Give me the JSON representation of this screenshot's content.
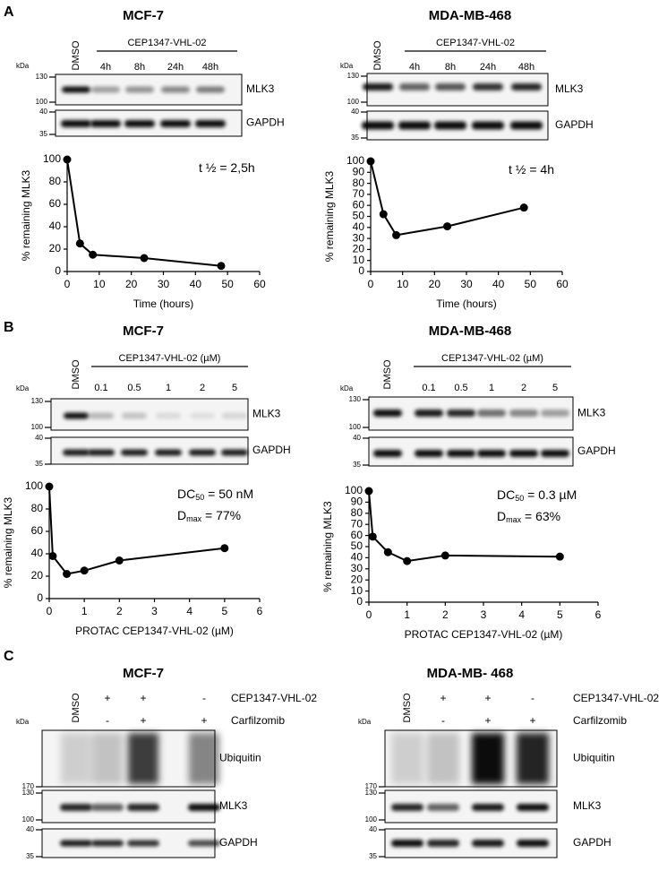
{
  "figure_labels": [
    "A",
    "B",
    "C"
  ],
  "panels": [
    {
      "title": "MCF-7",
      "lane_header": "CEP1347-VHL-02",
      "lanes": [
        "DMSO",
        "4h",
        "8h",
        "24h",
        "48h"
      ],
      "kda": "kDa",
      "blots": [
        {
          "label": "MLK3",
          "markers": [
            "130",
            "100"
          ]
        },
        {
          "label": "GAPDH",
          "markers": [
            "40",
            "35"
          ]
        }
      ]
    },
    {
      "title": "MDA-MB-468",
      "lane_header": "CEP1347-VHL-02",
      "lanes": [
        "DMSO",
        "4h",
        "8h",
        "24h",
        "48h"
      ],
      "kda": "kDa",
      "blots": [
        {
          "label": "MLK3",
          "markers": [
            "130",
            "100"
          ]
        },
        {
          "label": "GAPDH",
          "markers": [
            "40",
            "35"
          ]
        }
      ]
    },
    {
      "title": "MCF-7",
      "lane_header": "CEP1347-VHL-02 (µM)",
      "lanes": [
        "DMSO",
        "0.1",
        "0.5",
        "1",
        "2",
        "5"
      ],
      "kda": "kDa",
      "blots": [
        {
          "label": "MLK3",
          "markers": [
            "130",
            "100"
          ]
        },
        {
          "label": "GAPDH",
          "markers": [
            "40",
            "35"
          ]
        }
      ]
    },
    {
      "title": "MDA-MB-468",
      "lane_header": "CEP1347-VHL-02 (µM)",
      "lanes": [
        "DMSO",
        "0.1",
        "0.5",
        "1",
        "2",
        "5"
      ],
      "kda": "kDa",
      "blots": [
        {
          "label": "MLK3",
          "markers": [
            "130",
            "100"
          ]
        },
        {
          "label": "GAPDH",
          "markers": [
            "40",
            "35"
          ]
        }
      ]
    },
    {
      "title": "MCF-7",
      "lanes": [
        "DMSO"
      ],
      "kda": "kDa",
      "treatments": [
        {
          "label": "CEP1347-VHL-02",
          "signs": [
            "+",
            "+",
            "-"
          ]
        },
        {
          "label": "Carfilzomib",
          "signs": [
            "-",
            "+",
            "+"
          ]
        }
      ],
      "blots": [
        {
          "label": "Ubiquitin",
          "markers": [
            "170"
          ]
        },
        {
          "label": "MLK3",
          "markers": [
            "130",
            "100"
          ]
        },
        {
          "label": "GAPDH",
          "markers": [
            "40",
            "35"
          ]
        }
      ]
    },
    {
      "title": "MDA-MB- 468",
      "lanes": [
        "DMSO"
      ],
      "kda": "kDa",
      "treatments": [
        {
          "label": "CEP1347-VHL-02",
          "signs": [
            "+",
            "+",
            "-"
          ]
        },
        {
          "label": "Carfilzomib",
          "signs": [
            "-",
            "+",
            "+"
          ]
        }
      ],
      "blots": [
        {
          "label": "Ubiquitin",
          "markers": [
            "170"
          ]
        },
        {
          "label": "MLK3",
          "markers": [
            "130",
            "100"
          ]
        },
        {
          "label": "GAPDH",
          "markers": [
            "40",
            "35"
          ]
        }
      ]
    }
  ],
  "chart_data": [
    {
      "type": "line",
      "x": [
        0,
        4,
        8,
        24,
        48
      ],
      "values": [
        100,
        25,
        15,
        12,
        5
      ],
      "color": "#000000",
      "xlim": [
        0,
        60
      ],
      "xticks": [
        0,
        10,
        20,
        30,
        40,
        50,
        60
      ],
      "ylim": [
        0,
        100
      ],
      "yticks": [
        0,
        20,
        40,
        60,
        80,
        100
      ],
      "x_label": "Time (hours)",
      "y_label": "% remaining MLK3",
      "annotations": [
        [
          "t ½ = 2,5h"
        ]
      ]
    },
    {
      "type": "line",
      "x": [
        0,
        4,
        8,
        24,
        48
      ],
      "values": [
        100,
        52,
        33,
        41,
        58
      ],
      "color": "#000000",
      "xlim": [
        0,
        60
      ],
      "xticks": [
        0,
        10,
        20,
        30,
        40,
        50,
        60
      ],
      "ylim": [
        0,
        100
      ],
      "yticks": [
        0,
        10,
        20,
        30,
        40,
        50,
        60,
        70,
        80,
        90,
        100
      ],
      "x_label": "Time (hours)",
      "y_label": "% remaining MLK3",
      "annotations": [
        [
          "t ½ = 4h"
        ]
      ]
    },
    {
      "type": "line",
      "x": [
        0,
        0.1,
        0.5,
        1,
        2,
        5
      ],
      "values": [
        100,
        38,
        22,
        25,
        34,
        45
      ],
      "color": "#000000",
      "xlim": [
        0,
        6
      ],
      "xticks": [
        0,
        1,
        2,
        3,
        4,
        5,
        6
      ],
      "ylim": [
        0,
        100
      ],
      "yticks": [
        0,
        20,
        40,
        60,
        80,
        100
      ],
      "x_label": "PROTAC CEP1347-VHL-02 (µM)",
      "y_label": "% remaining MLK3",
      "annotations": [
        [
          "DC",
          "50",
          " = 50 nM"
        ],
        [
          "D",
          "max",
          " = 77%"
        ]
      ]
    },
    {
      "type": "line",
      "x": [
        0,
        0.1,
        0.5,
        1,
        2,
        5
      ],
      "values": [
        100,
        59,
        45,
        37,
        42,
        41
      ],
      "color": "#000000",
      "xlim": [
        0,
        6
      ],
      "xticks": [
        0,
        1,
        2,
        3,
        4,
        5,
        6
      ],
      "ylim": [
        0,
        100
      ],
      "yticks": [
        0,
        10,
        20,
        30,
        40,
        50,
        60,
        70,
        80,
        90,
        100
      ],
      "x_label": "PROTAC CEP1347-VHL-02 (µM)",
      "y_label": "% remaining MLK3",
      "annotations": [
        [
          "DC",
          "50",
          " = 0.3 µM"
        ],
        [
          "D",
          "max",
          " = 63%"
        ]
      ]
    }
  ]
}
